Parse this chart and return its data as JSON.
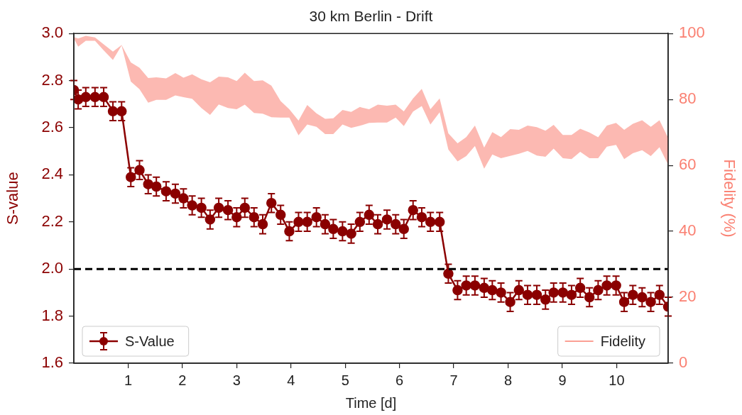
{
  "chart_data": {
    "type": "line",
    "title": "30 km Berlin - Drift",
    "xlabel": "Time [d]",
    "ylabel": "S-value",
    "y2label": "Fidelity (%)",
    "x": [
      0,
      0.08,
      0.22,
      0.39,
      0.55,
      0.72,
      0.88,
      1.05,
      1.21,
      1.37,
      1.52,
      1.7,
      1.87,
      2.02,
      2.18,
      2.35,
      2.51,
      2.67,
      2.84,
      3.0,
      3.15,
      3.32,
      3.48,
      3.64,
      3.81,
      3.97,
      4.14,
      4.3,
      4.47,
      4.63,
      4.78,
      4.95,
      5.11,
      5.27,
      5.44,
      5.6,
      5.77,
      5.93,
      6.08,
      6.25,
      6.41,
      6.57,
      6.74,
      6.9,
      7.07,
      7.23,
      7.39,
      7.56,
      7.71,
      7.87,
      8.04,
      8.2,
      8.36,
      8.53,
      8.69,
      8.84,
      9.01,
      9.17,
      9.33,
      9.5,
      9.66,
      9.82,
      9.99,
      10.14,
      10.3,
      10.47,
      10.63,
      10.79,
      10.95
    ],
    "series": [
      {
        "name": "S-Value",
        "color": "#8b0000",
        "axis": "y",
        "marker": "circle",
        "errors": [
          0.04,
          0.04,
          0.04,
          0.04,
          0.04,
          0.04,
          0.04,
          0.04,
          0.04,
          0.04,
          0.04,
          0.04,
          0.04,
          0.04,
          0.04,
          0.04,
          0.04,
          0.04,
          0.04,
          0.04,
          0.04,
          0.04,
          0.04,
          0.04,
          0.04,
          0.04,
          0.04,
          0.04,
          0.04,
          0.04,
          0.04,
          0.04,
          0.04,
          0.04,
          0.04,
          0.04,
          0.04,
          0.04,
          0.04,
          0.04,
          0.04,
          0.04,
          0.04,
          0.04,
          0.04,
          0.04,
          0.04,
          0.04,
          0.04,
          0.04,
          0.04,
          0.04,
          0.04,
          0.04,
          0.04,
          0.04,
          0.04,
          0.04,
          0.04,
          0.04,
          0.04,
          0.04,
          0.04,
          0.04,
          0.04,
          0.04,
          0.04,
          0.04,
          0.04
        ],
        "values": [
          2.76,
          2.72,
          2.73,
          2.73,
          2.73,
          2.67,
          2.67,
          2.39,
          2.42,
          2.36,
          2.35,
          2.33,
          2.32,
          2.3,
          2.27,
          2.26,
          2.21,
          2.26,
          2.25,
          2.22,
          2.26,
          2.22,
          2.19,
          2.28,
          2.23,
          2.16,
          2.2,
          2.2,
          2.22,
          2.19,
          2.17,
          2.16,
          2.15,
          2.2,
          2.23,
          2.19,
          2.21,
          2.19,
          2.17,
          2.25,
          2.22,
          2.2,
          2.2,
          1.98,
          1.91,
          1.93,
          1.93,
          1.92,
          1.91,
          1.9,
          1.86,
          1.91,
          1.89,
          1.89,
          1.87,
          1.9,
          1.9,
          1.89,
          1.92,
          1.88,
          1.91,
          1.93,
          1.93,
          1.86,
          1.89,
          1.88,
          1.86,
          1.89,
          1.84
        ]
      },
      {
        "name": "Fidelity",
        "color": "#fa8072",
        "axis": "y2",
        "marker": "none",
        "values": [
          null,
          null,
          null,
          null,
          null,
          null,
          null,
          null,
          null,
          null,
          null,
          null,
          null,
          null,
          null,
          null,
          null,
          null,
          null,
          null,
          null,
          null,
          null,
          null,
          null,
          null,
          null,
          null,
          null,
          null,
          null,
          null,
          null,
          null,
          null,
          null,
          null,
          null,
          null,
          null,
          null,
          null,
          null,
          null,
          null,
          null,
          null,
          null,
          null,
          null,
          null,
          null,
          null,
          null,
          null,
          null,
          null,
          null,
          null,
          null,
          null,
          null,
          null,
          null,
          null,
          null,
          null,
          null,
          null
        ],
        "upper": [
          98.9,
          98.5,
          99.3,
          98.8,
          96.7,
          94.5,
          96.5,
          91.2,
          89.6,
          86.5,
          86.7,
          86.4,
          88.0,
          86.6,
          87.6,
          86.1,
          85.2,
          86.9,
          86.7,
          85.6,
          88.1,
          85.6,
          85.8,
          84.2,
          79.5,
          77.0,
          73.6,
          78.3,
          75.8,
          74.1,
          74.3,
          76.8,
          76.2,
          77.7,
          77.0,
          78.4,
          78.1,
          78.4,
          76.4,
          80.3,
          83.2,
          77.0,
          80.3,
          69.7,
          66.7,
          68.6,
          72.1,
          65.4,
          70.1,
          68.6,
          71.0,
          70.8,
          72.1,
          71.6,
          70.5,
          72.3,
          69.2,
          69.2,
          71.1,
          70.0,
          68.5,
          72.1,
          72.9,
          70.8,
          72.6,
          73.7,
          71.7,
          73.7,
          68.3
        ],
        "lower": [
          98.5,
          96.0,
          97.8,
          97.8,
          94.9,
          92.0,
          96.4,
          85.4,
          83.1,
          79.0,
          79.9,
          79.9,
          81.2,
          80.7,
          80.2,
          77.4,
          75.3,
          78.5,
          77.4,
          77.0,
          78.4,
          75.9,
          75.7,
          74.6,
          74.5,
          74.5,
          69.1,
          72.4,
          71.7,
          69.5,
          69.5,
          72.4,
          71.4,
          72.0,
          72.9,
          73.0,
          73.0,
          74.5,
          71.9,
          76.3,
          78.0,
          72.4,
          76.1,
          64.8,
          61.2,
          62.8,
          65.9,
          59.0,
          63.3,
          62.2,
          62.9,
          63.5,
          64.4,
          63.0,
          62.6,
          65.1,
          62.2,
          61.9,
          64.1,
          62.2,
          62.2,
          65.7,
          66.2,
          61.9,
          63.7,
          64.6,
          62.8,
          65.5,
          60.2
        ]
      }
    ],
    "xlim": [
      0,
      10.95
    ],
    "xticks": [
      1,
      2,
      3,
      4,
      5,
      6,
      7,
      8,
      9,
      10
    ],
    "ylim": [
      1.6,
      3.0
    ],
    "yticks": [
      1.6,
      1.8,
      {
        "value": 2.0,
        "label": "2.0"
      },
      2.2,
      2.4,
      2.6,
      2.8,
      {
        "value": 3.0,
        "label": "3.0"
      }
    ],
    "y2lim": [
      0,
      100
    ],
    "y2ticks": [
      0,
      20,
      40,
      60,
      80,
      100
    ],
    "ref_lines": [
      {
        "axis": "y",
        "value": 2.0,
        "color": "#000000",
        "line_style": "dashed"
      }
    ],
    "legend": "bottom",
    "grid": false,
    "line_style": "solid"
  }
}
